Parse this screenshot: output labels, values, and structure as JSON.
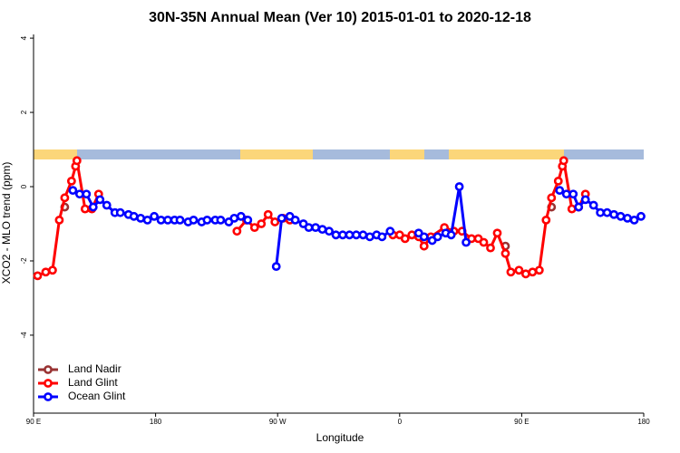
{
  "chart_data": {
    "type": "line",
    "title": "30N-35N Annual Mean (Ver 10)   2015-01-01 to 2020-12-18",
    "xlabel": "Longitude",
    "ylabel": "XCO2 - MLO trend (ppm)",
    "xlim": [
      90,
      540
    ],
    "ylim": [
      -6.1,
      4.1
    ],
    "xticks": [
      {
        "value": 90,
        "label": "90 E"
      },
      {
        "value": 180,
        "label": "180"
      },
      {
        "value": 270,
        "label": "90 W"
      },
      {
        "value": 360,
        "label": "0"
      },
      {
        "value": 450,
        "label": "90 E"
      },
      {
        "value": 540,
        "label": "180"
      }
    ],
    "yticks": [
      -4,
      -2,
      0,
      2,
      4
    ],
    "legend": "bottom-left",
    "series": [
      {
        "name": "Land Nadir",
        "color": "#993333",
        "x": [
          113,
          250,
          378,
          410,
          438,
          455,
          472
        ],
        "values": [
          -0.55,
          null,
          -1.6,
          null,
          -1.6,
          null,
          -0.55
        ]
      },
      {
        "name": "Land Glint",
        "color": "#ff0000",
        "x": [
          93,
          99,
          104,
          109,
          113,
          118,
          121,
          122,
          128,
          133,
          138,
          190,
          240,
          247,
          253,
          258,
          263,
          268,
          274,
          279,
          320,
          355,
          360,
          364,
          369,
          374,
          378,
          383,
          393,
          400,
          406,
          413,
          418,
          422,
          427,
          432,
          438,
          442,
          448,
          453,
          458,
          463,
          468,
          472,
          477,
          480,
          481,
          487,
          492,
          497
        ],
        "values": [
          -2.4,
          -2.3,
          -2.25,
          -0.9,
          -0.3,
          0.15,
          0.55,
          0.7,
          -0.6,
          -0.6,
          -0.2,
          null,
          -1.2,
          -0.9,
          -1.1,
          -1.0,
          -0.75,
          -0.95,
          -0.85,
          -0.9,
          null,
          -1.3,
          -1.3,
          -1.4,
          -1.3,
          -1.35,
          -1.6,
          -1.35,
          -1.1,
          -1.2,
          -1.2,
          -1.4,
          -1.4,
          -1.5,
          -1.65,
          -1.25,
          -1.8,
          -2.3,
          -2.25,
          -2.35,
          -2.3,
          -2.25,
          -0.9,
          -0.3,
          0.15,
          0.55,
          0.7,
          -0.6,
          -0.55,
          -0.2
        ]
      },
      {
        "name": "Ocean Glint",
        "color": "#0000ff",
        "x": [
          119,
          124,
          129,
          134,
          139,
          144,
          150,
          154,
          160,
          164,
          169,
          174,
          179,
          184,
          189,
          194,
          198,
          204,
          208,
          214,
          218,
          224,
          228,
          234,
          238,
          243,
          248,
          258,
          269,
          273,
          279,
          283,
          289,
          293,
          298,
          303,
          308,
          313,
          318,
          323,
          328,
          333,
          338,
          343,
          347,
          353,
          363,
          374,
          378,
          384,
          388,
          394,
          398,
          404,
          409,
          440,
          478,
          483,
          488,
          492,
          497,
          503,
          508,
          513,
          518,
          523,
          528,
          533,
          538
        ],
        "values": [
          -0.1,
          -0.2,
          -0.2,
          -0.55,
          -0.35,
          -0.5,
          -0.7,
          -0.7,
          -0.75,
          -0.8,
          -0.85,
          -0.9,
          -0.8,
          -0.9,
          -0.9,
          -0.9,
          -0.9,
          -0.95,
          -0.9,
          -0.95,
          -0.9,
          -0.9,
          -0.9,
          -0.95,
          -0.85,
          -0.8,
          -0.9,
          null,
          -2.15,
          -0.85,
          -0.8,
          -0.9,
          -1.0,
          -1.1,
          -1.1,
          -1.15,
          -1.2,
          -1.3,
          -1.3,
          -1.3,
          -1.3,
          -1.3,
          -1.35,
          -1.3,
          -1.35,
          -1.2,
          null,
          -1.25,
          -1.35,
          -1.45,
          -1.35,
          -1.25,
          -1.3,
          0.0,
          -1.5,
          null,
          -0.1,
          -0.2,
          -0.2,
          -0.55,
          -0.35,
          -0.5,
          -0.7,
          -0.7,
          -0.75,
          -0.8,
          -0.85,
          -0.9,
          -0.8
        ]
      }
    ]
  }
}
